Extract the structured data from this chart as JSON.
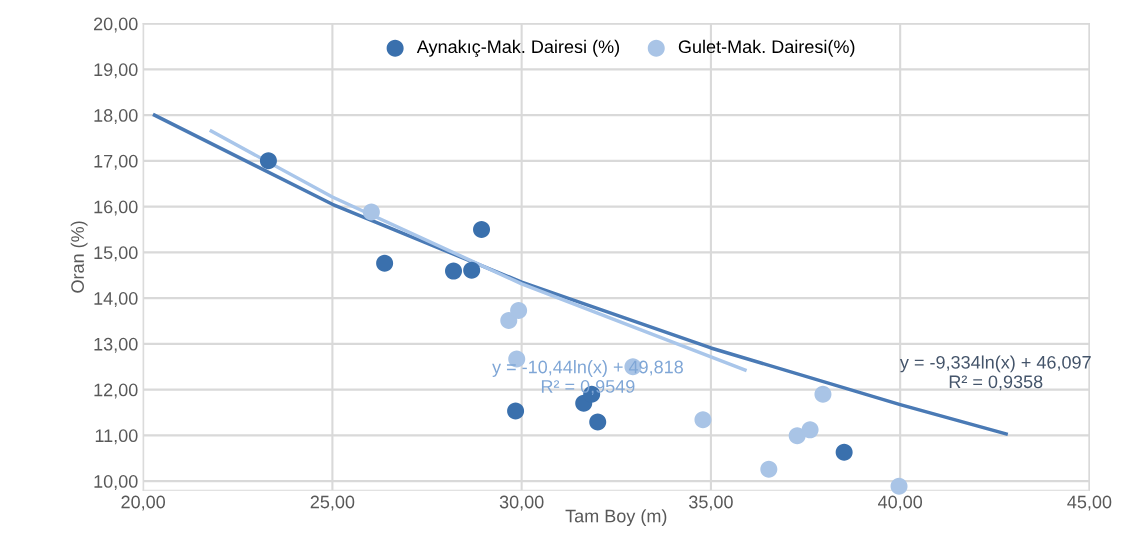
{
  "chart_data": {
    "type": "scatter",
    "xlabel": "Tam Boy (m)",
    "ylabel": "Oran (%)",
    "xlim": [
      20,
      45
    ],
    "ylim": [
      9.8,
      20
    ],
    "xticks": [
      {
        "value": 20,
        "label": "20,00"
      },
      {
        "value": 25,
        "label": "25,00"
      },
      {
        "value": 30,
        "label": "30,00"
      },
      {
        "value": 35,
        "label": "35,00"
      },
      {
        "value": 40,
        "label": "40,00"
      },
      {
        "value": 45,
        "label": "45,00"
      }
    ],
    "yticks": [
      {
        "value": 10,
        "label": "10,00"
      },
      {
        "value": 11,
        "label": "11,00"
      },
      {
        "value": 12,
        "label": "12,00"
      },
      {
        "value": 13,
        "label": "13,00"
      },
      {
        "value": 14,
        "label": "14,00"
      },
      {
        "value": 15,
        "label": "15,00"
      },
      {
        "value": 16,
        "label": "16,00"
      },
      {
        "value": 17,
        "label": "17,00"
      },
      {
        "value": 18,
        "label": "18,00"
      },
      {
        "value": 19,
        "label": "19,00"
      },
      {
        "value": 20,
        "label": "20,00"
      }
    ],
    "grid": true,
    "legend": "top",
    "series": [
      {
        "name": "Aynakıç-Mak. Dairesi (%)",
        "color": "#3a70ad",
        "marker": "circle",
        "x": [
          23.31,
          26.38,
          28.2,
          28.68,
          28.94,
          29.84,
          31.64,
          31.85,
          32.01,
          38.52
        ],
        "values": [
          17.0,
          14.76,
          14.59,
          14.61,
          15.5,
          11.53,
          11.7,
          11.9,
          11.29,
          10.63
        ]
      },
      {
        "name": "Gulet-Mak. Dairesi(%)",
        "color": "#a9c4e6",
        "marker": "circle",
        "x": [
          26.03,
          29.66,
          29.92,
          29.87,
          32.94,
          34.79,
          37.96,
          37.28,
          37.62,
          36.53,
          39.97
        ],
        "values": [
          15.88,
          13.51,
          13.73,
          12.67,
          12.5,
          11.34,
          11.9,
          10.99,
          11.12,
          10.26,
          9.89
        ]
      },
      {
        "type": "line",
        "color": "#4a7ab5",
        "x": [
          20.3,
          25,
          30,
          35,
          40,
          42.8
        ],
        "values": [
          18.0,
          16.05,
          14.35,
          12.91,
          11.67,
          11.03
        ]
      },
      {
        "type": "line",
        "color": "#a9c6ea",
        "x": [
          21.8,
          25,
          30,
          35.9
        ],
        "values": [
          17.65,
          16.21,
          14.31,
          12.43
        ]
      }
    ],
    "annotations": [
      "y = -9,334ln(x) + 46,097\nR² = 0,9358",
      "y = -10,44ln(x) + 49,818\nR² = 0,9549"
    ]
  }
}
